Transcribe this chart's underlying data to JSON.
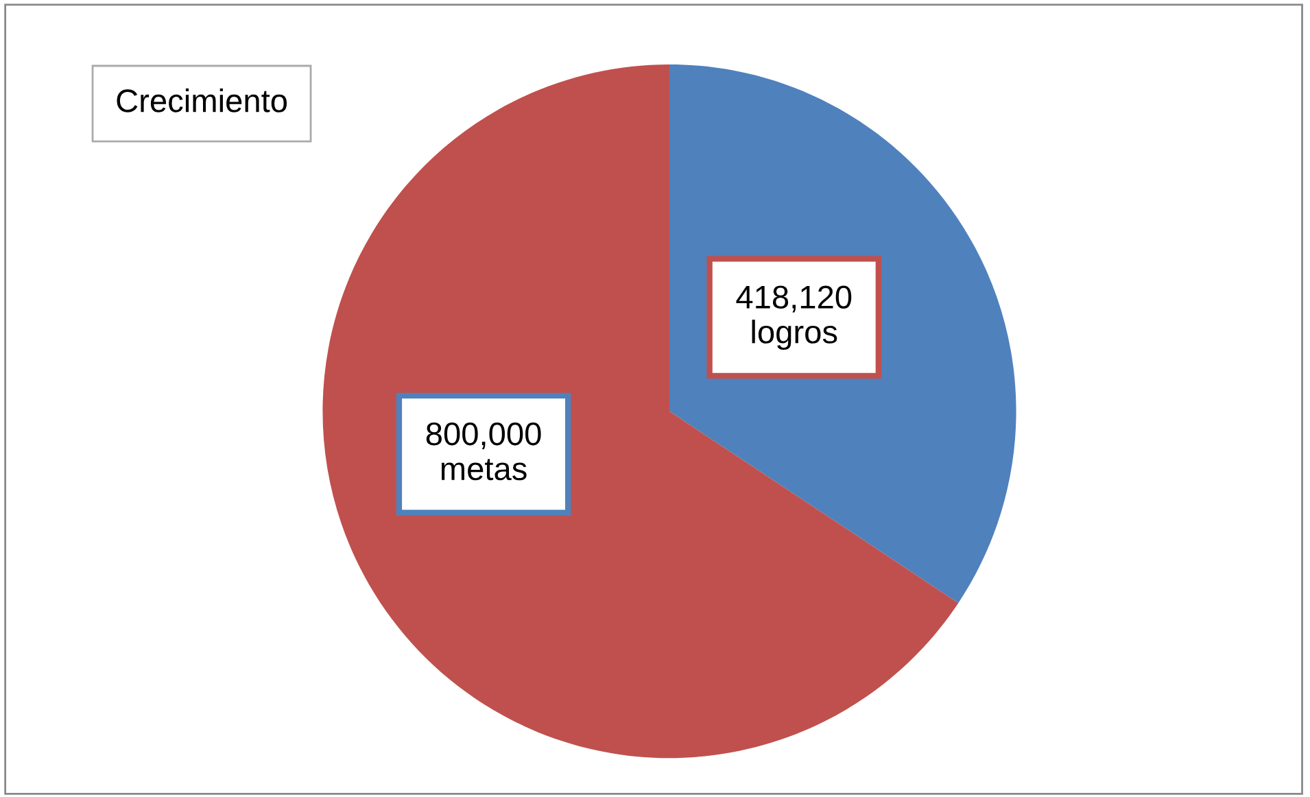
{
  "chart_data": {
    "type": "pie",
    "title": "Crecimiento",
    "categories": [
      "logros",
      "metas"
    ],
    "values": [
      418120,
      800000
    ],
    "colors": [
      "#4f81bd",
      "#c0504d"
    ],
    "value_labels": [
      "418,120",
      "800,000"
    ],
    "legend": false
  }
}
